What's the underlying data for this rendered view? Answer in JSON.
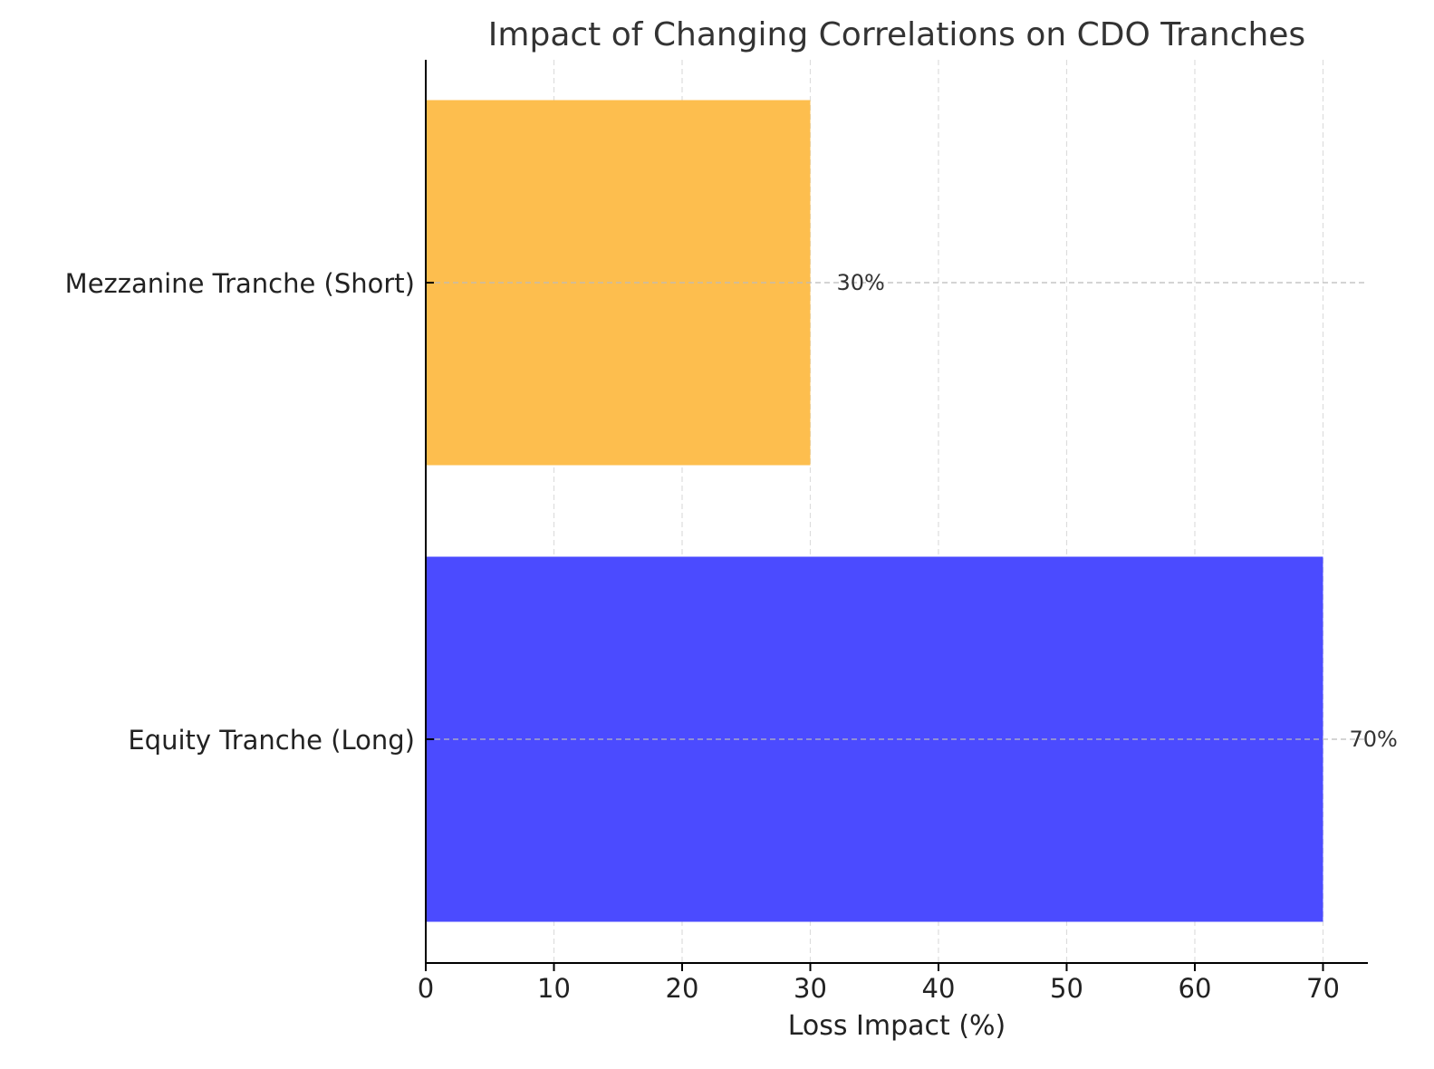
{
  "chart_data": {
    "type": "bar",
    "orientation": "horizontal",
    "title": "Impact of Changing Correlations on CDO Tranches",
    "xlabel": "Loss Impact (%)",
    "ylabel": "",
    "categories": [
      "Equity Tranche (Long)",
      "Mezzanine Tranche (Short)"
    ],
    "values": [
      70,
      30
    ],
    "value_labels": [
      "70%",
      "30%"
    ],
    "colors": [
      "#4b4bff",
      "#fdbe4e"
    ],
    "xlim": [
      0,
      73.5
    ],
    "xticks": [
      0,
      10,
      20,
      30,
      40,
      50,
      60,
      70
    ],
    "xtick_labels": [
      "0",
      "10",
      "20",
      "30",
      "40",
      "50",
      "60",
      "70"
    ],
    "grid": true,
    "legend": "none"
  }
}
